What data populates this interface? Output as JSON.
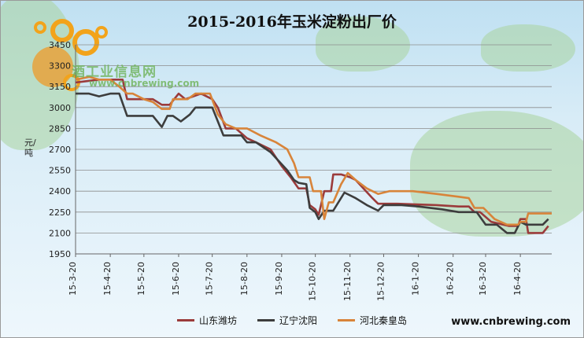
{
  "chart_data": {
    "type": "line",
    "title": "2015-2016年玉米淀粉出厂价",
    "ylabel": "元/吨",
    "xlabel": "",
    "ylim": [
      1950,
      3450
    ],
    "yticks": [
      1950,
      2100,
      2250,
      2400,
      2550,
      2700,
      2850,
      3000,
      3150,
      3300,
      3450
    ],
    "xlim": [
      "2015-03-20",
      "2016-05-18"
    ],
    "xticks": [
      "15-3-20",
      "15-4-20",
      "15-5-20",
      "15-6-20",
      "15-7-20",
      "15-8-20",
      "15-9-20",
      "15-10-20",
      "15-11-20",
      "15-12-20",
      "16-1-20",
      "16-2-20",
      "16-3-20",
      "16-4-20"
    ],
    "grid": "horizontal",
    "legend_position": "bottom",
    "series": [
      {
        "name": "山东潍坊",
        "color": "#9b3b3b",
        "points": [
          [
            "2015-03-20",
            3180
          ],
          [
            "2015-04-10",
            3200
          ],
          [
            "2015-04-25",
            3200
          ],
          [
            "2015-05-01",
            3200
          ],
          [
            "2015-05-05",
            3060
          ],
          [
            "2015-05-20",
            3060
          ],
          [
            "2015-05-28",
            3060
          ],
          [
            "2015-06-05",
            3020
          ],
          [
            "2015-06-12",
            3020
          ],
          [
            "2015-06-20",
            3100
          ],
          [
            "2015-06-26",
            3060
          ],
          [
            "2015-07-10",
            3100
          ],
          [
            "2015-07-20",
            3060
          ],
          [
            "2015-07-25",
            3000
          ],
          [
            "2015-08-01",
            2850
          ],
          [
            "2015-08-10",
            2850
          ],
          [
            "2015-08-20",
            2780
          ],
          [
            "2015-08-28",
            2750
          ],
          [
            "2015-09-10",
            2700
          ],
          [
            "2015-09-20",
            2580
          ],
          [
            "2015-09-28",
            2500
          ],
          [
            "2015-10-05",
            2420
          ],
          [
            "2015-10-12",
            2420
          ],
          [
            "2015-10-15",
            2300
          ],
          [
            "2015-10-20",
            2270
          ],
          [
            "2015-10-23",
            2230
          ],
          [
            "2015-10-28",
            2400
          ],
          [
            "2015-11-03",
            2400
          ],
          [
            "2015-11-05",
            2520
          ],
          [
            "2015-11-12",
            2520
          ],
          [
            "2015-11-20",
            2500
          ],
          [
            "2015-11-25",
            2480
          ],
          [
            "2015-12-10",
            2350
          ],
          [
            "2015-12-15",
            2310
          ],
          [
            "2016-01-01",
            2310
          ],
          [
            "2016-02-05",
            2300
          ],
          [
            "2016-02-25",
            2290
          ],
          [
            "2016-03-05",
            2290
          ],
          [
            "2016-03-10",
            2250
          ],
          [
            "2016-03-15",
            2250
          ],
          [
            "2016-03-25",
            2180
          ],
          [
            "2016-04-10",
            2150
          ],
          [
            "2016-04-18",
            2150
          ],
          [
            "2016-04-20",
            2200
          ],
          [
            "2016-04-25",
            2200
          ],
          [
            "2016-04-27",
            2100
          ],
          [
            "2016-05-10",
            2100
          ],
          [
            "2016-05-15",
            2150
          ]
        ]
      },
      {
        "name": "辽宁沈阳",
        "color": "#3d3d3d",
        "points": [
          [
            "2015-03-20",
            3100
          ],
          [
            "2015-04-01",
            3100
          ],
          [
            "2015-04-10",
            3080
          ],
          [
            "2015-04-20",
            3100
          ],
          [
            "2015-04-28",
            3100
          ],
          [
            "2015-05-05",
            2940
          ],
          [
            "2015-05-15",
            2940
          ],
          [
            "2015-05-20",
            2940
          ],
          [
            "2015-05-28",
            2940
          ],
          [
            "2015-06-05",
            2860
          ],
          [
            "2015-06-10",
            2940
          ],
          [
            "2015-06-15",
            2940
          ],
          [
            "2015-06-22",
            2900
          ],
          [
            "2015-06-30",
            2950
          ],
          [
            "2015-07-05",
            3000
          ],
          [
            "2015-07-15",
            3000
          ],
          [
            "2015-07-20",
            3000
          ],
          [
            "2015-07-25",
            2900
          ],
          [
            "2015-07-30",
            2800
          ],
          [
            "2015-08-10",
            2800
          ],
          [
            "2015-08-15",
            2800
          ],
          [
            "2015-08-20",
            2750
          ],
          [
            "2015-08-28",
            2750
          ],
          [
            "2015-09-10",
            2680
          ],
          [
            "2015-09-25",
            2550
          ],
          [
            "2015-10-01",
            2480
          ],
          [
            "2015-10-05",
            2460
          ],
          [
            "2015-10-12",
            2450
          ],
          [
            "2015-10-15",
            2280
          ],
          [
            "2015-10-20",
            2250
          ],
          [
            "2015-10-23",
            2200
          ],
          [
            "2015-10-28",
            2260
          ],
          [
            "2015-11-05",
            2260
          ],
          [
            "2015-11-15",
            2390
          ],
          [
            "2015-11-25",
            2350
          ],
          [
            "2015-12-05",
            2300
          ],
          [
            "2015-12-15",
            2260
          ],
          [
            "2015-12-20",
            2300
          ],
          [
            "2016-01-05",
            2300
          ],
          [
            "2016-01-20",
            2290
          ],
          [
            "2016-02-10",
            2270
          ],
          [
            "2016-02-25",
            2250
          ],
          [
            "2016-03-05",
            2250
          ],
          [
            "2016-03-12",
            2250
          ],
          [
            "2016-03-20",
            2160
          ],
          [
            "2016-03-30",
            2160
          ],
          [
            "2016-04-08",
            2100
          ],
          [
            "2016-04-15",
            2100
          ],
          [
            "2016-04-20",
            2180
          ],
          [
            "2016-04-25",
            2160
          ],
          [
            "2016-05-10",
            2160
          ],
          [
            "2016-05-15",
            2200
          ]
        ]
      },
      {
        "name": "河北秦皇岛",
        "color": "#d8843a",
        "points": [
          [
            "2015-03-20",
            3200
          ],
          [
            "2015-04-01",
            3220
          ],
          [
            "2015-04-10",
            3200
          ],
          [
            "2015-04-20",
            3200
          ],
          [
            "2015-04-28",
            3150
          ],
          [
            "2015-05-05",
            3100
          ],
          [
            "2015-05-10",
            3100
          ],
          [
            "2015-05-20",
            3060
          ],
          [
            "2015-05-28",
            3040
          ],
          [
            "2015-06-05",
            2990
          ],
          [
            "2015-06-12",
            2990
          ],
          [
            "2015-06-15",
            3060
          ],
          [
            "2015-06-20",
            3060
          ],
          [
            "2015-06-28",
            3060
          ],
          [
            "2015-07-05",
            3100
          ],
          [
            "2015-07-10",
            3100
          ],
          [
            "2015-07-18",
            3100
          ],
          [
            "2015-07-25",
            2950
          ],
          [
            "2015-08-01",
            2880
          ],
          [
            "2015-08-10",
            2850
          ],
          [
            "2015-08-20",
            2850
          ],
          [
            "2015-09-01",
            2800
          ],
          [
            "2015-09-15",
            2750
          ],
          [
            "2015-09-25",
            2700
          ],
          [
            "2015-10-01",
            2600
          ],
          [
            "2015-10-05",
            2500
          ],
          [
            "2015-10-15",
            2500
          ],
          [
            "2015-10-18",
            2400
          ],
          [
            "2015-10-25",
            2400
          ],
          [
            "2015-10-28",
            2200
          ],
          [
            "2015-11-01",
            2320
          ],
          [
            "2015-11-05",
            2320
          ],
          [
            "2015-11-12",
            2450
          ],
          [
            "2015-11-18",
            2530
          ],
          [
            "2015-11-25",
            2480
          ],
          [
            "2015-12-05",
            2420
          ],
          [
            "2015-12-15",
            2380
          ],
          [
            "2015-12-25",
            2400
          ],
          [
            "2016-01-05",
            2400
          ],
          [
            "2016-01-15",
            2400
          ],
          [
            "2016-02-05",
            2380
          ],
          [
            "2016-02-25",
            2360
          ],
          [
            "2016-03-05",
            2350
          ],
          [
            "2016-03-10",
            2280
          ],
          [
            "2016-03-18",
            2280
          ],
          [
            "2016-03-28",
            2200
          ],
          [
            "2016-04-08",
            2160
          ],
          [
            "2016-04-18",
            2160
          ],
          [
            "2016-04-20",
            2180
          ],
          [
            "2016-04-25",
            2180
          ],
          [
            "2016-04-27",
            2240
          ],
          [
            "2016-05-10",
            2240
          ],
          [
            "2016-05-18",
            2240
          ]
        ]
      }
    ]
  },
  "watermark": {
    "logo_text": "酒工业信息网",
    "url_text": "www.cnbrewing.com"
  },
  "footer_url": "www.cnbrewing.com"
}
